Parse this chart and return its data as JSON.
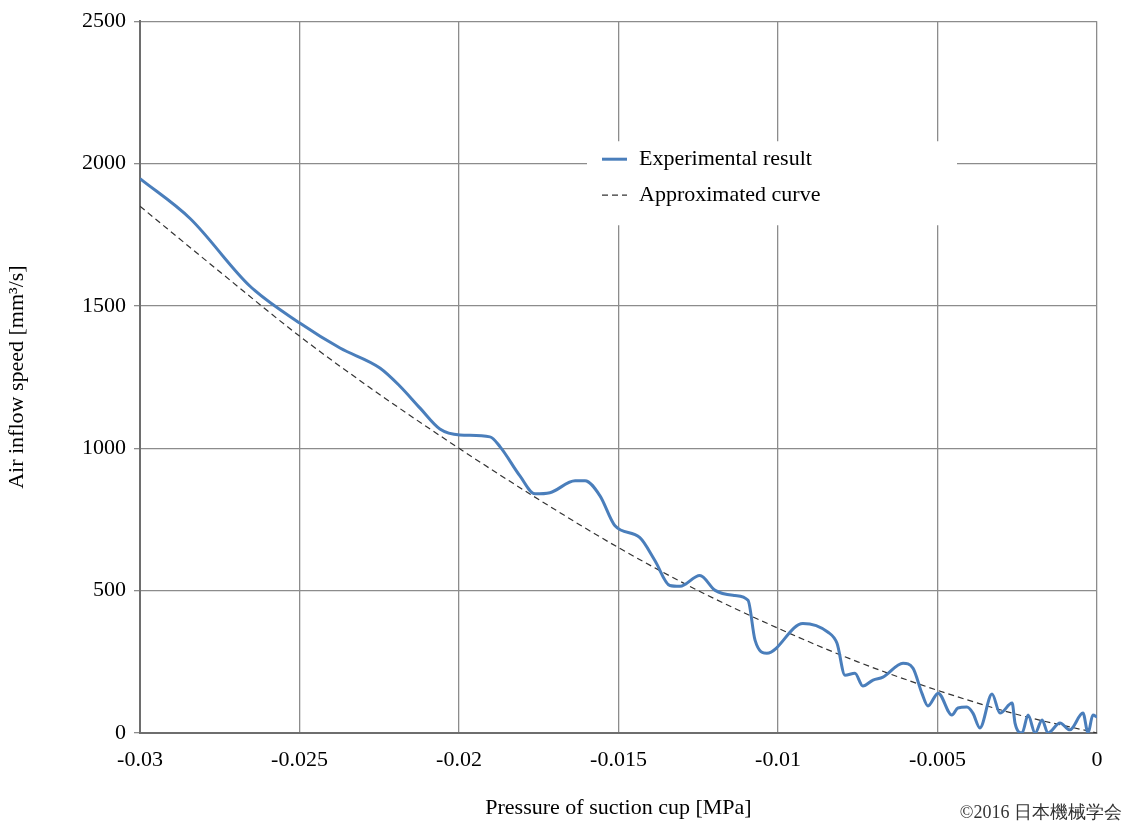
{
  "chart_data": {
    "type": "line",
    "xlabel": "Pressure of suction cup [MPa]",
    "ylabel": "Air inflow speed [mm³/s]",
    "xlim": [
      -0.03,
      0
    ],
    "xticks": [
      -0.03,
      -0.025,
      -0.02,
      -0.015,
      -0.01,
      -0.005,
      0
    ],
    "ylim": [
      0,
      2500
    ],
    "yticks": [
      0,
      500,
      1000,
      1500,
      2000,
      2500
    ],
    "grid": true,
    "legend": "top right",
    "marker": "none",
    "annotations": [
      "©2016 日本機械学会"
    ],
    "series": [
      {
        "name": "Experimental result",
        "color": "#4a7ebb",
        "line_style": "solid",
        "x": [
          -0.03,
          -0.02843,
          -0.02655,
          -0.02498,
          -0.02373,
          -0.02248,
          -0.02185,
          -0.02122,
          -0.0206,
          -0.01997,
          -0.01903,
          -0.01871,
          -0.01809,
          -0.01762,
          -0.01715,
          -0.01636,
          -0.01605,
          -0.01558,
          -0.01511,
          -0.01433,
          -0.01386,
          -0.01339,
          -0.01307,
          -0.01245,
          -0.01197,
          -0.01135,
          -0.01094,
          -0.01072,
          -0.01035,
          -0.00922,
          -0.00843,
          -0.00815,
          -0.0079,
          -0.00759,
          -0.00734,
          -0.00702,
          -0.00671,
          -0.00608,
          -0.00577,
          -0.00549,
          -0.0053,
          -0.00498,
          -0.00455,
          -0.00436,
          -0.00408,
          -0.00389,
          -0.00367,
          -0.00329,
          -0.00304,
          -0.00266,
          -0.00257,
          -0.00235,
          -0.00216,
          -0.00194,
          -0.00172,
          -0.00154,
          -0.00116,
          -0.00085,
          -0.00044,
          -0.00028,
          -0.00013,
          0
        ],
        "values": [
          1947,
          1807,
          1569,
          1439,
          1352,
          1282,
          1218,
          1141,
          1068,
          1047,
          1040,
          1005,
          903,
          840,
          844,
          886,
          886,
          833,
          728,
          686,
          606,
          518,
          515,
          553,
          501,
          483,
          466,
          326,
          280,
          385,
          354,
          315,
          203,
          210,
          165,
          186,
          196,
          245,
          228,
          140,
          95,
          140,
          63,
          88,
          91,
          70,
          18,
          137,
          70,
          105,
          35,
          0,
          63,
          0,
          46,
          0,
          35,
          11,
          70,
          0,
          63,
          56
        ]
      },
      {
        "name": "Approximated curve",
        "color": "#333333",
        "line_style": "dashed",
        "x": [
          -0.03,
          -0.0275,
          -0.025,
          -0.0225,
          -0.02,
          -0.0175,
          -0.015,
          -0.0125,
          -0.01,
          -0.0075,
          -0.005,
          -0.0025,
          0
        ],
        "values": [
          1850,
          1620,
          1394,
          1190,
          1000,
          820,
          651,
          500,
          368,
          250,
          150,
          65,
          0
        ]
      }
    ]
  }
}
